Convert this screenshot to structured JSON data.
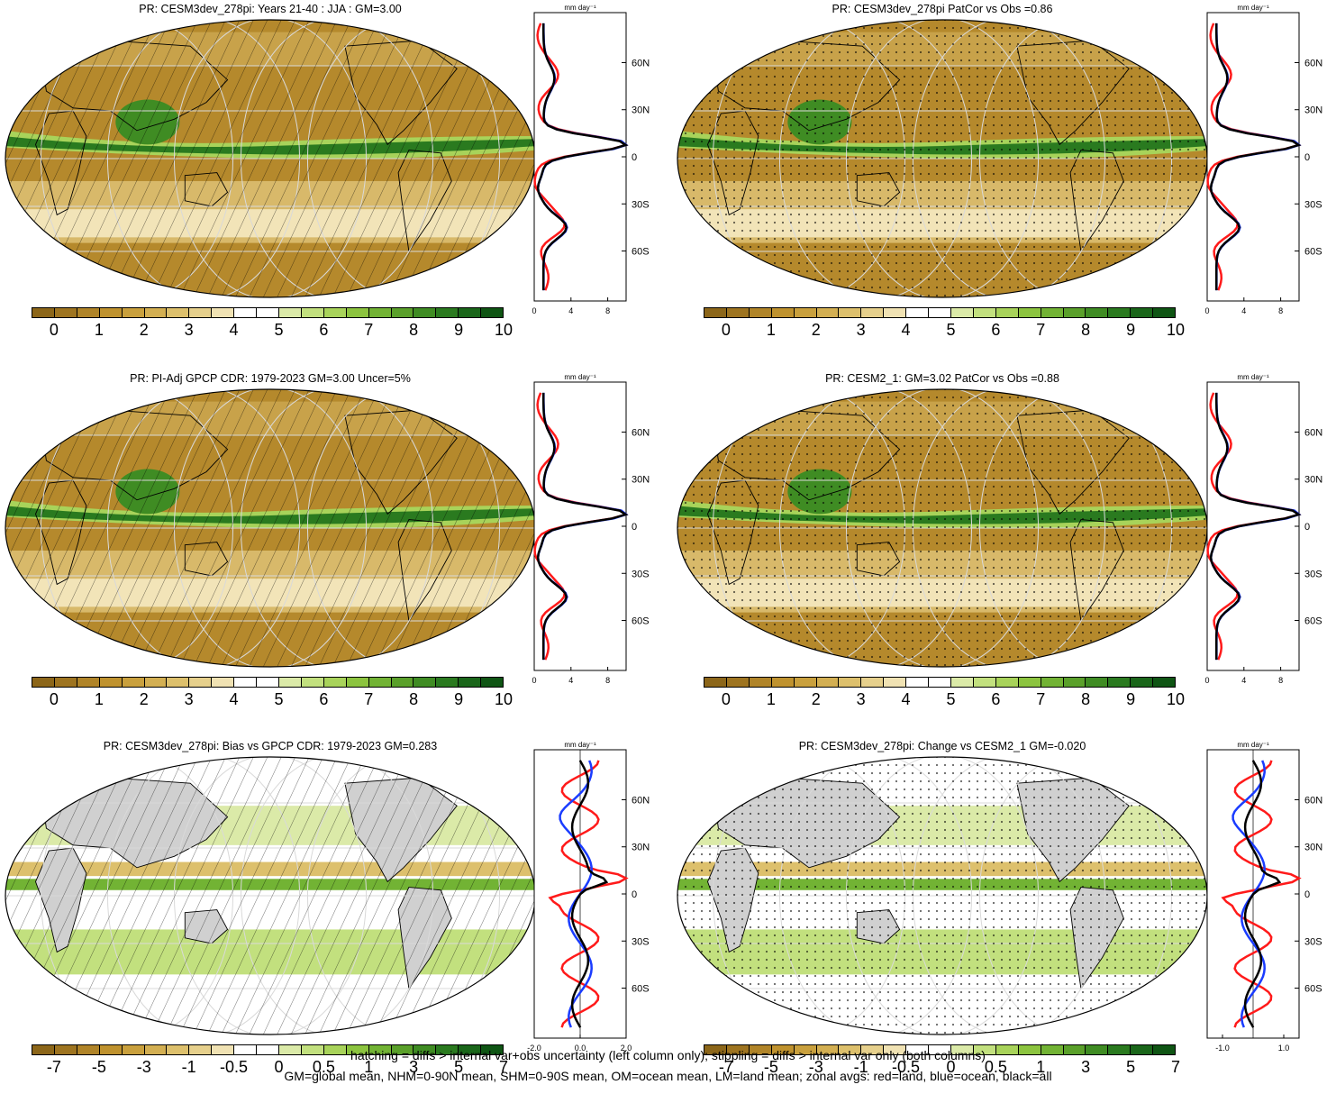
{
  "panels": [
    {
      "id": "p1",
      "title": "PR: CESM3dev_278pi: Years 21-40 : JJA : GM=3.00",
      "kind": "abs",
      "hatch": "lines",
      "zonal_units": "mm day⁻¹",
      "zonal_xticks": [
        "0",
        "4",
        "8"
      ],
      "zonal_xrange": [
        0,
        10
      ]
    },
    {
      "id": "p2",
      "title": "PR: CESM3dev_278pi PatCor vs Obs =0.86",
      "kind": "abs",
      "hatch": "dots",
      "zonal_units": "mm day⁻¹",
      "zonal_xticks": [
        "0",
        "4",
        "8"
      ],
      "zonal_xrange": [
        0,
        10
      ]
    },
    {
      "id": "p3",
      "title": "PR: PI-Adj GPCP CDR: 1979-2023 GM=3.00 Uncer=5%",
      "kind": "abs",
      "hatch": "lines",
      "zonal_units": "mm day⁻¹",
      "zonal_xticks": [
        "0",
        "4",
        "8"
      ],
      "zonal_xrange": [
        0,
        10
      ]
    },
    {
      "id": "p4",
      "title": "PR: CESM2_1: GM=3.02 PatCor vs Obs =0.88",
      "kind": "abs",
      "hatch": "dots",
      "zonal_units": "mm day⁻¹",
      "zonal_xticks": [
        "0",
        "4",
        "8"
      ],
      "zonal_xrange": [
        0,
        10
      ]
    },
    {
      "id": "p5",
      "title": "PR: CESM3dev_278pi: Bias vs GPCP CDR: 1979-2023 GM=0.283",
      "kind": "diff",
      "hatch": "lines",
      "zonal_units": "mm day⁻¹",
      "zonal_xticks": [
        "-2.0",
        "0.0",
        "2.0"
      ],
      "zonal_xrange": [
        -2,
        2
      ]
    },
    {
      "id": "p6",
      "title": "PR: CESM3dev_278pi: Change vs CESM2_1 GM=-0.020",
      "kind": "diff",
      "hatch": "dots",
      "zonal_units": "mm day⁻¹",
      "zonal_xticks": [
        "-1.0",
        "1.0"
      ],
      "zonal_xrange": [
        -1.5,
        1.5
      ]
    }
  ],
  "lat_labels": [
    "60N",
    "30N",
    "0",
    "30S",
    "60S"
  ],
  "colorbar_abs": {
    "labels": [
      "0",
      "1",
      "2",
      "3",
      "4",
      "5",
      "6",
      "7",
      "8",
      "9",
      "10"
    ],
    "colors": [
      "#8c6619",
      "#9e7420",
      "#b08428",
      "#bf922e",
      "#c9a03d",
      "#d3af52",
      "#ddc06c",
      "#e6d08c",
      "#f0e2b3",
      "#ffffff",
      "#ffffff",
      "#dbeaa8",
      "#c2e07e",
      "#a8d35a",
      "#8cc43f",
      "#72b334",
      "#5aa02a",
      "#3f8c23",
      "#2a7a1f",
      "#1a661a",
      "#0f5514"
    ]
  },
  "colorbar_diff": {
    "labels": [
      "-7",
      "-5",
      "-3",
      "-1",
      "-0.5",
      "0",
      "0.5",
      "1",
      "3",
      "5",
      "7"
    ],
    "colors": [
      "#8c6619",
      "#9e7420",
      "#b08428",
      "#bf922e",
      "#c9a03d",
      "#d3af52",
      "#ddc06c",
      "#e6d08c",
      "#f0e2b3",
      "#ffffff",
      "#ffffff",
      "#dbeaa8",
      "#c2e07e",
      "#a8d35a",
      "#8cc43f",
      "#72b334",
      "#5aa02a",
      "#3f8c23",
      "#2a7a1f",
      "#1a661a",
      "#0f5514"
    ]
  },
  "zonal_legend": {
    "land": "#ff1a1a",
    "ocean": "#1a3cff",
    "all": "#000000"
  },
  "footer": {
    "line1": "hatching = diffs > internal var+obs uncertainty (left column only); stippling = diffs > internal var only (both columns)",
    "line2": "GM=global mean, NHM=0-90N mean, SHM=0-90S mean, OM=ocean mean, LM=land mean; zonal avgs: red=land, blue=ocean, black=all"
  }
}
